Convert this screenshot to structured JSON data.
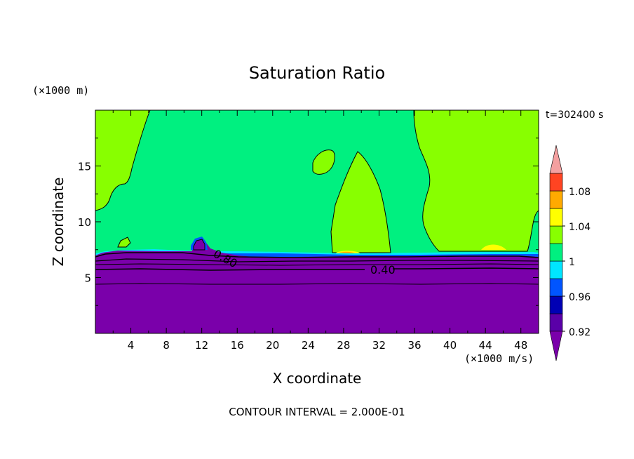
{
  "chart_data": {
    "type": "heatmap",
    "title": "Saturation Ratio",
    "xlabel": "X coordinate",
    "ylabel": "Z coordinate",
    "x_unit": "(×1000 m/s)",
    "y_unit": "(×1000 m)",
    "time_label": "t=302400 s",
    "footer": "CONTOUR INTERVAL = 2.000E-01",
    "xlim": [
      0,
      50
    ],
    "ylim": [
      0,
      20
    ],
    "x_ticks": [
      4,
      8,
      12,
      16,
      20,
      24,
      28,
      32,
      36,
      40,
      44,
      48
    ],
    "y_ticks": [
      5,
      10,
      15
    ],
    "contour_labels": [
      {
        "text": "0.80",
        "x": 14.5,
        "y": 7.2
      },
      {
        "text": "0.40",
        "x": 32.5,
        "y": 5.6
      }
    ],
    "colorbar": {
      "levels": [
        0.92,
        0.94,
        0.96,
        0.98,
        1.0,
        1.02,
        1.04,
        1.06,
        1.08,
        1.1
      ],
      "colors": [
        "#5a00a8",
        "#0000b4",
        "#0055ff",
        "#00e5ff",
        "#00f080",
        "#88ff00",
        "#ffff00",
        "#ffaa00",
        "#ff4422",
        "#ff1010",
        "#f4a0a0"
      ],
      "labels": [
        "0.92",
        "0.96",
        "1",
        "1.04",
        "1.08"
      ],
      "under_color": "#7a00aa",
      "over_color": "#f4a0a0"
    }
  }
}
